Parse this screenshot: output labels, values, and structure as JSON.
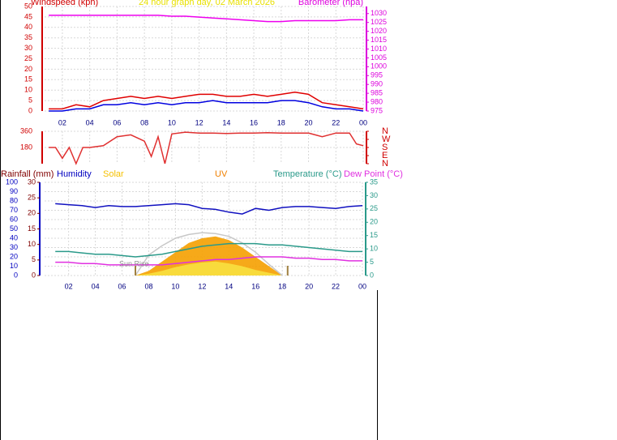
{
  "chart_data": [
    {
      "type": "line",
      "title": "24 hour graph day, 02 March 2026",
      "ylabel": "Windspeed (kph)",
      "y2label": "Barometer (hpa)",
      "xlim": [
        0.7,
        24
      ],
      "xticks": [
        {
          "value": 2,
          "label": "02"
        },
        {
          "value": 4,
          "label": "04"
        },
        {
          "value": 6,
          "label": "06"
        },
        {
          "value": 8,
          "label": "08"
        },
        {
          "value": 10,
          "label": "10"
        },
        12,
        14,
        16,
        18,
        20,
        22,
        {
          "value": 24,
          "label": "00"
        }
      ],
      "ylim": [
        0,
        50
      ],
      "yticks": [
        0,
        5,
        10,
        15,
        20,
        25,
        30,
        35,
        40,
        45,
        50
      ],
      "y2lim": [
        975,
        1034
      ],
      "y2ticks": [
        975,
        980,
        985,
        990,
        995,
        1000,
        1005,
        1010,
        1015,
        1020,
        1025,
        1030
      ],
      "x": [
        1,
        2,
        3,
        4,
        5,
        6,
        7,
        8,
        9,
        10,
        11,
        12,
        13,
        14,
        15,
        16,
        17,
        18,
        19,
        20,
        21,
        22,
        23,
        24
      ],
      "series": [
        {
          "color": "#e00000",
          "values": [
            1,
            1,
            3,
            2,
            5,
            6,
            7,
            6,
            7,
            6,
            7,
            8,
            8,
            7,
            7,
            8,
            7,
            8,
            9,
            8,
            4,
            3,
            2,
            1
          ]
        },
        {
          "color": "#0000e0",
          "values": [
            0,
            0,
            1,
            1,
            3,
            3,
            4,
            3,
            4,
            3,
            4,
            4,
            5,
            4,
            4,
            4,
            4,
            5,
            5,
            4,
            2,
            1,
            1,
            0
          ]
        },
        {
          "color": "#ee00ee",
          "axis": "y2",
          "values": [
            1029,
            1029,
            1029,
            1029,
            1029,
            1029,
            1029,
            1029,
            1029,
            1028.5,
            1028.5,
            1028,
            1027.5,
            1027,
            1026.5,
            1026,
            1025.5,
            1025.5,
            1026,
            1026,
            1026,
            1026,
            1026.5,
            1026.5
          ]
        }
      ]
    },
    {
      "type": "line",
      "xlim": [
        0.7,
        24
      ],
      "xticks": [
        {
          "value": 2,
          "label": "02"
        },
        {
          "value": 4,
          "label": "04"
        },
        {
          "value": 6,
          "label": "06"
        },
        {
          "value": 8,
          "label": "08"
        },
        {
          "value": 10,
          "label": "10"
        },
        12,
        14,
        16,
        18,
        20,
        22,
        {
          "value": 24,
          "label": "00"
        }
      ],
      "ylim": [
        0,
        360
      ],
      "yticks": [
        180,
        360
      ],
      "y2lim": [
        0,
        360
      ],
      "y2ticks": [
        {
          "value": 360,
          "label": "N"
        },
        {
          "value": 270,
          "label": "W"
        },
        {
          "value": 180,
          "label": "S"
        },
        {
          "value": 90,
          "label": "E"
        },
        {
          "value": 0,
          "label": "N"
        }
      ],
      "x": [
        1,
        1.5,
        2,
        2.5,
        3,
        3.5,
        4,
        5,
        6,
        7,
        8,
        8.5,
        9,
        9.5,
        10,
        11,
        12,
        13,
        14,
        15,
        16,
        17,
        18,
        19,
        20,
        21,
        22,
        23,
        23.5,
        24
      ],
      "series": [
        {
          "color": "#e03030",
          "values": [
            180,
            180,
            60,
            180,
            0,
            180,
            180,
            200,
            300,
            320,
            250,
            80,
            300,
            0,
            330,
            350,
            340,
            340,
            335,
            340,
            340,
            345,
            340,
            340,
            340,
            300,
            340,
            340,
            220,
            200
          ]
        }
      ]
    },
    {
      "type": "line",
      "y3label": "Rainfall (mm)",
      "ylabel": "Humidity",
      "xlim": [
        0.2,
        24
      ],
      "xticks": [
        {
          "value": 2,
          "label": "02"
        },
        {
          "value": 4,
          "label": "04"
        },
        {
          "value": 6,
          "label": "06"
        },
        {
          "value": 8,
          "label": "08"
        },
        {
          "value": 10,
          "label": "10"
        },
        12,
        14,
        16,
        18,
        20,
        22,
        {
          "value": 24,
          "label": "00"
        }
      ],
      "ylim": [
        0,
        100
      ],
      "yticks": [
        0,
        10,
        20,
        30,
        40,
        50,
        60,
        70,
        80,
        90,
        100
      ],
      "y3lim": [
        0,
        30
      ],
      "y3ticks": [
        0,
        5,
        10,
        15,
        20,
        25,
        30
      ],
      "y2lim": [
        0,
        35
      ],
      "y2ticks": [
        0,
        5,
        10,
        15,
        20,
        25,
        30,
        35
      ],
      "x": [
        1,
        2,
        3,
        4,
        5,
        6,
        7,
        8,
        9,
        10,
        11,
        12,
        13,
        14,
        15,
        16,
        17,
        18,
        19,
        20,
        21,
        22,
        23,
        24
      ],
      "series": [
        {
          "name": "Solar",
          "type": "area",
          "color": "#f5a000",
          "values": [
            0,
            0,
            0,
            0,
            0,
            0,
            0,
            5,
            15,
            25,
            35,
            40,
            42,
            38,
            30,
            20,
            10,
            0,
            0,
            0,
            0,
            0,
            0,
            0
          ]
        },
        {
          "name": "UV",
          "type": "area",
          "color": "#f8e040",
          "values": [
            0,
            0,
            0,
            0,
            0,
            0,
            0,
            2,
            5,
            9,
            12,
            14,
            15,
            13,
            10,
            6,
            3,
            0,
            0,
            0,
            0,
            0,
            0,
            0
          ]
        },
        {
          "color": "#c8c8c8",
          "values": [
            null,
            null,
            null,
            null,
            null,
            null,
            0,
            22,
            32,
            40,
            44,
            46,
            45,
            42,
            35,
            25,
            12,
            0,
            null,
            null,
            null,
            null,
            null,
            null
          ]
        },
        {
          "name": "Humidity",
          "color": "#1010c0",
          "values": [
            77,
            76,
            75,
            73,
            75,
            74,
            74,
            75,
            76,
            77,
            76,
            72,
            71,
            68,
            66,
            72,
            70,
            73,
            74,
            74,
            73,
            72,
            74,
            75
          ]
        },
        {
          "name": "Temperature (°C)",
          "axis": "y2",
          "color": "#2a9a8a",
          "values": [
            9,
            9,
            8.5,
            8,
            8,
            7.5,
            7,
            7.5,
            8,
            9,
            10,
            11,
            11.5,
            12,
            12,
            12,
            11.5,
            11.5,
            11,
            10.5,
            10,
            9.5,
            9,
            9
          ]
        },
        {
          "name": "Dew Point (°C)",
          "axis": "y2",
          "color": "#e030e0",
          "values": [
            5,
            5,
            4.5,
            4.5,
            4,
            4,
            4,
            4,
            4,
            4.5,
            5,
            5.5,
            6,
            6,
            6.5,
            7,
            7,
            7,
            6.5,
            6.5,
            6,
            6,
            5.5,
            5.5
          ]
        }
      ],
      "annotation": {
        "text": "Sun Rise",
        "x": 7
      },
      "sun_marks": [
        7,
        18.4
      ]
    }
  ]
}
